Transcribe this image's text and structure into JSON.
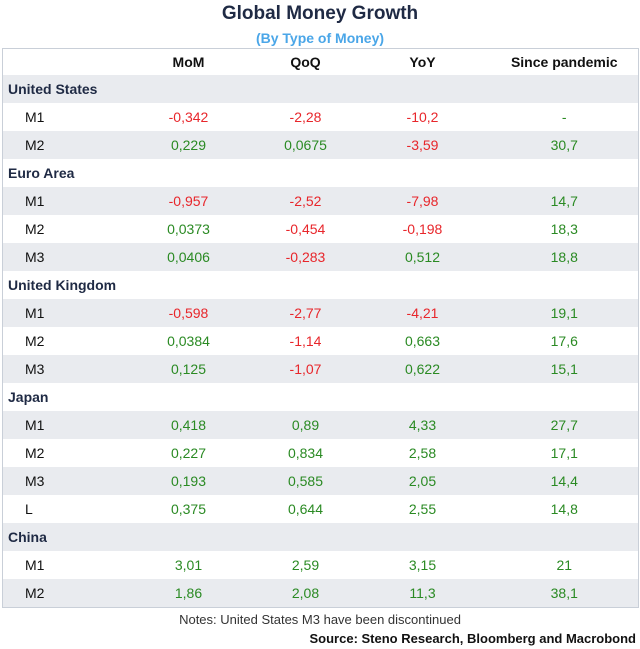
{
  "chart_data": {
    "type": "table",
    "title": "Global Money Growth",
    "subtitle": "(By Type of Money)",
    "columns": [
      "MoM",
      "QoQ",
      "YoY",
      "Since pandemic"
    ],
    "groups": [
      {
        "name": "United States",
        "rows": [
          {
            "label": "M1",
            "values": [
              "-0,342",
              "-2,28",
              "-10,2",
              "-"
            ]
          },
          {
            "label": "M2",
            "values": [
              "0,229",
              "0,0675",
              "-3,59",
              "30,7"
            ]
          }
        ]
      },
      {
        "name": "Euro Area",
        "rows": [
          {
            "label": "M1",
            "values": [
              "-0,957",
              "-2,52",
              "-7,98",
              "14,7"
            ]
          },
          {
            "label": "M2",
            "values": [
              "0,0373",
              "-0,454",
              "-0,198",
              "18,3"
            ]
          },
          {
            "label": "M3",
            "values": [
              "0,0406",
              "-0,283",
              "0,512",
              "18,8"
            ]
          }
        ]
      },
      {
        "name": "United Kingdom",
        "rows": [
          {
            "label": "M1",
            "values": [
              "-0,598",
              "-2,77",
              "-4,21",
              "19,1"
            ]
          },
          {
            "label": "M2",
            "values": [
              "0,0384",
              "-1,14",
              "0,663",
              "17,6"
            ]
          },
          {
            "label": "M3",
            "values": [
              "0,125",
              "-1,07",
              "0,622",
              "15,1"
            ]
          }
        ]
      },
      {
        "name": "Japan",
        "rows": [
          {
            "label": "M1",
            "values": [
              "0,418",
              "0,89",
              "4,33",
              "27,7"
            ]
          },
          {
            "label": "M2",
            "values": [
              "0,227",
              "0,834",
              "2,58",
              "17,1"
            ]
          },
          {
            "label": "M3",
            "values": [
              "0,193",
              "0,585",
              "2,05",
              "14,4"
            ]
          },
          {
            "label": "L",
            "values": [
              "0,375",
              "0,644",
              "2,55",
              "14,8"
            ]
          }
        ]
      },
      {
        "name": "China",
        "rows": [
          {
            "label": "M1",
            "values": [
              "3,01",
              "2,59",
              "3,15",
              "21"
            ]
          },
          {
            "label": "M2",
            "values": [
              "1,86",
              "2,08",
              "11,3",
              "38,1"
            ]
          }
        ]
      }
    ],
    "note": "Notes: United States M3 have been discontinued",
    "source": "Source: Steno Research, Bloomberg and Macrobond"
  },
  "colors": {
    "negative": "#e8262b",
    "positive": "#2a8a23",
    "title": "#1f2a44",
    "subtitle": "#4aa6e8",
    "row_shade": "#e9ebef"
  }
}
